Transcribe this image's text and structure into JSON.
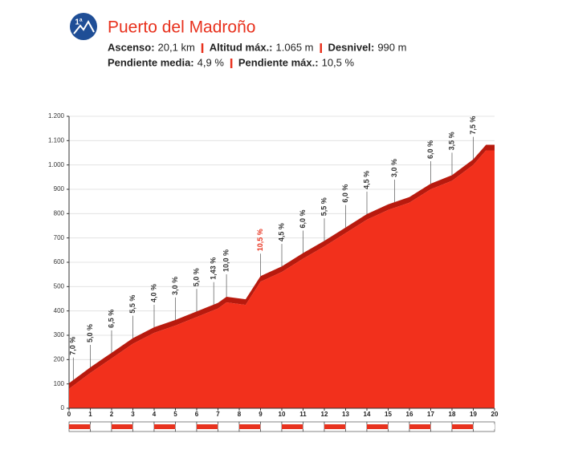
{
  "header": {
    "category": "1ª",
    "title": "Puerto del Madroño",
    "stats": [
      [
        {
          "label": "Ascenso:",
          "value": "20,1 km"
        },
        {
          "label": "Altitud máx.:",
          "value": "1.065 m"
        },
        {
          "label": "Desnivel:",
          "value": "990 m"
        }
      ],
      [
        {
          "label": "Pendiente media:",
          "value": "4,9 %"
        },
        {
          "label": "Pendiente máx.:",
          "value": "10,5 %"
        }
      ]
    ]
  },
  "chart_data": {
    "type": "area",
    "color": "#f2301c",
    "highlight_color": "#e8321e",
    "x": [
      0,
      1,
      2,
      3,
      4,
      5,
      6,
      7,
      7.4,
      8.3,
      9,
      10,
      11,
      12,
      13,
      14,
      15,
      16,
      17,
      18,
      19,
      19.6,
      20
    ],
    "values": [
      80,
      145,
      205,
      265,
      310,
      340,
      375,
      410,
      435,
      425,
      520,
      560,
      615,
      665,
      720,
      775,
      815,
      845,
      900,
      935,
      1000,
      1060,
      1060
    ],
    "gradients": {
      "x": [
        0.2,
        1,
        2,
        3,
        4,
        5,
        6,
        6.8,
        7.4,
        9,
        10,
        11,
        12,
        13,
        14,
        15.3,
        17,
        18,
        19
      ],
      "labels": [
        "7,0 %",
        "5,0 %",
        "6,5 %",
        "5,5 %",
        "4,0 %",
        "3,0 %",
        "5,0 %",
        "1,43 %",
        "10,0 %",
        "10,5 %",
        "4,5 %",
        "6,0 %",
        "5,5 %",
        "6,0 %",
        "4,5 %",
        "3,0 %",
        "6,0 %",
        "3,5 %",
        "7,5 %"
      ]
    },
    "xlim": [
      0,
      20
    ],
    "xticks": [
      0,
      1,
      2,
      3,
      4,
      5,
      6,
      7,
      8,
      9,
      10,
      11,
      12,
      13,
      14,
      15,
      16,
      17,
      18,
      19,
      20
    ],
    "ylim": [
      0,
      1200
    ],
    "yticks": [
      0,
      100,
      200,
      300,
      400,
      500,
      600,
      700,
      800,
      900,
      {
        "value": 1000,
        "label": "1.000"
      },
      {
        "value": 1100,
        "label": "1.100"
      },
      {
        "value": 1200,
        "label": "1.200"
      }
    ],
    "grid": true
  }
}
